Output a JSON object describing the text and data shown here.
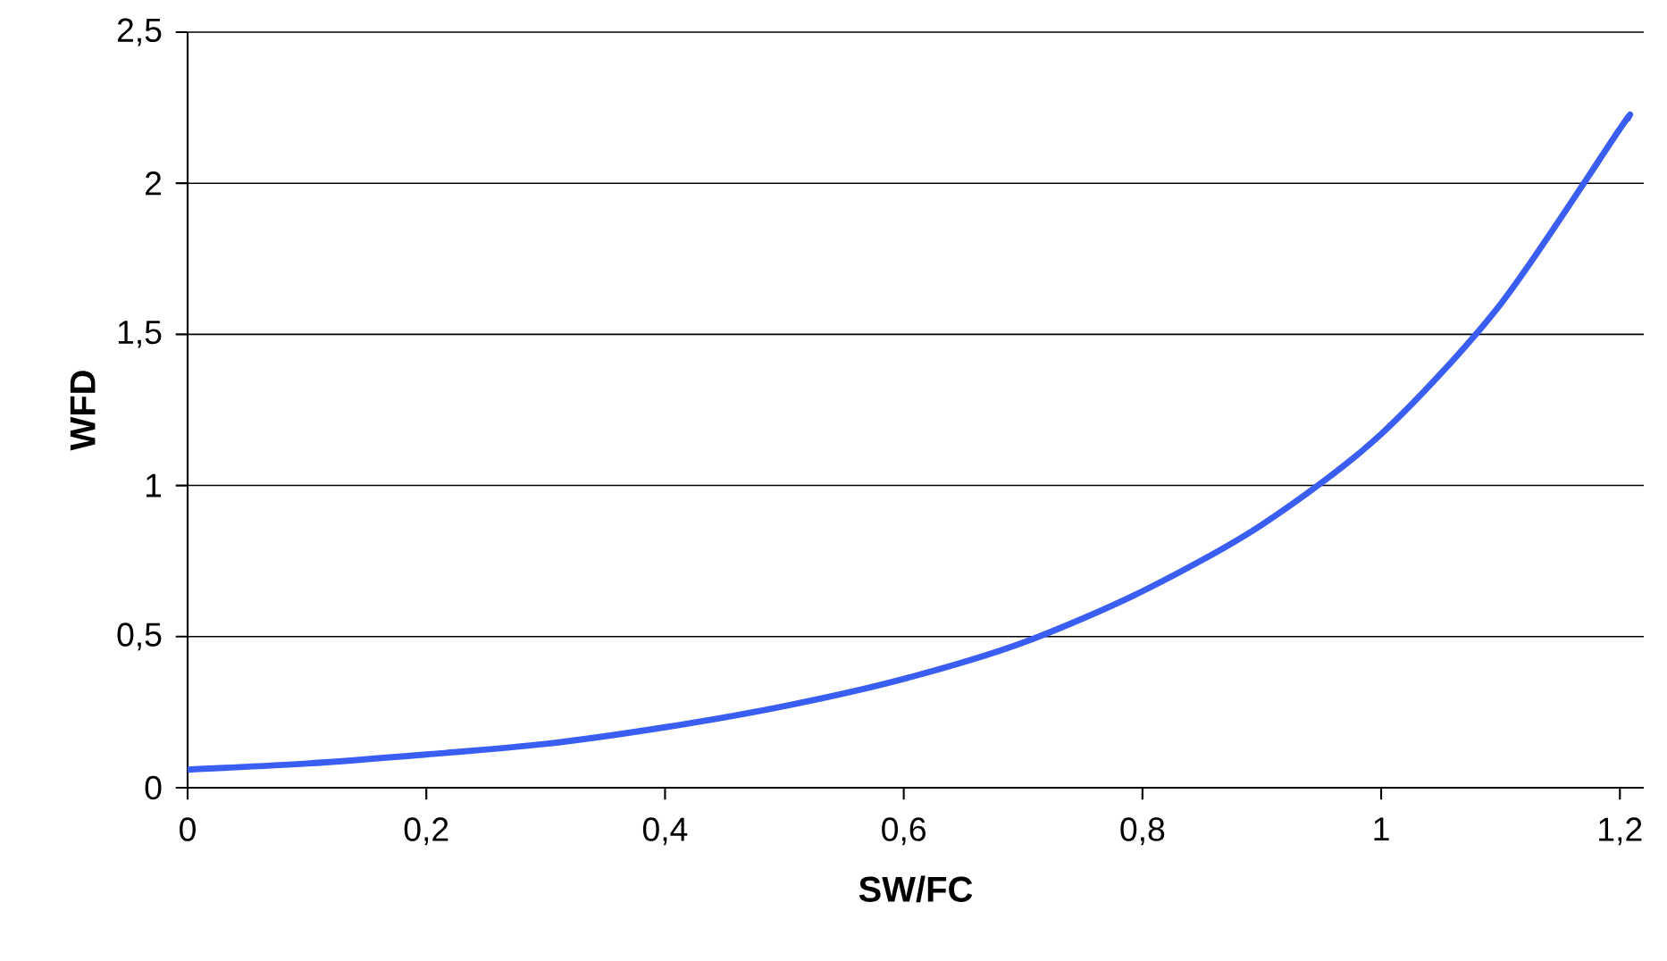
{
  "chart_data": {
    "type": "line",
    "xlabel": "SW/FC",
    "ylabel": "WFD",
    "x": [
      0,
      0.1,
      0.2,
      0.3,
      0.4,
      0.5,
      0.6,
      0.7,
      0.8,
      0.9,
      1.0,
      1.1,
      1.2,
      1.206
    ],
    "series": [
      {
        "color": "#3b5ef2",
        "values": [
          0.06,
          0.08,
          0.11,
          0.145,
          0.2,
          0.27,
          0.36,
          0.48,
          0.65,
          0.87,
          1.17,
          1.6,
          2.18,
          2.21
        ]
      }
    ],
    "xlim": [
      0,
      1.22
    ],
    "ylim": [
      0,
      2.5
    ],
    "xticks": [
      0,
      {
        "value": 0.2,
        "label": "0,2"
      },
      {
        "value": 0.4,
        "label": "0,4"
      },
      {
        "value": 0.6,
        "label": "0,6"
      },
      {
        "value": 0.8,
        "label": "0,8"
      },
      1,
      {
        "value": 1.2,
        "label": "1,2"
      }
    ],
    "yticks": [
      0,
      {
        "value": 0.5,
        "label": "0,5"
      },
      1,
      {
        "value": 1.5,
        "label": "1,5"
      },
      2,
      {
        "value": 2.5,
        "label": "2,5"
      }
    ],
    "grid": "y",
    "marker": "none",
    "line_style": "solid"
  }
}
